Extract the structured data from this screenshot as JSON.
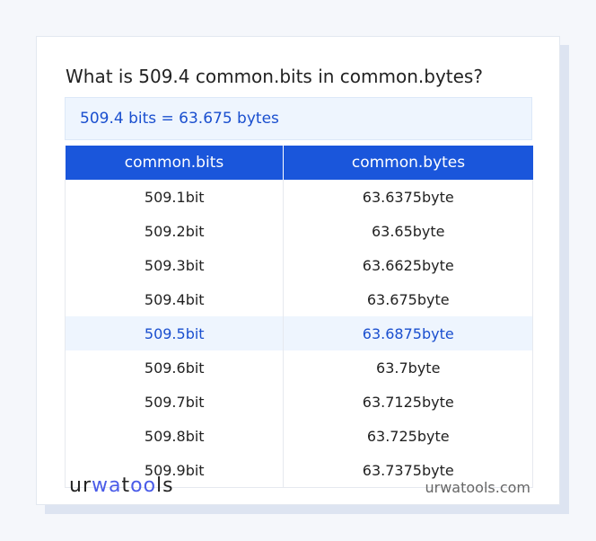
{
  "title": "What is 509.4 common.bits in common.bytes?",
  "result": "509.4 bits = 63.675 bytes",
  "table": {
    "headers": [
      "common.bits",
      "common.bytes"
    ],
    "rows": [
      [
        "509.1bit",
        "63.6375byte"
      ],
      [
        "509.2bit",
        "63.65byte"
      ],
      [
        "509.3bit",
        "63.6625byte"
      ],
      [
        "509.4bit",
        "63.675byte"
      ],
      [
        "509.5bit",
        "63.6875byte"
      ],
      [
        "509.6bit",
        "63.7byte"
      ],
      [
        "509.7bit",
        "63.7125byte"
      ],
      [
        "509.8bit",
        "63.725byte"
      ],
      [
        "509.9bit",
        "63.7375byte"
      ]
    ],
    "highlighted_row": 4
  },
  "footer": {
    "logo": "urwatools",
    "site": "urwatools.com"
  },
  "colors": {
    "accent": "#1a56db",
    "highlight_text": "#1a4fcf",
    "highlight_bg": "#eef5fe"
  }
}
